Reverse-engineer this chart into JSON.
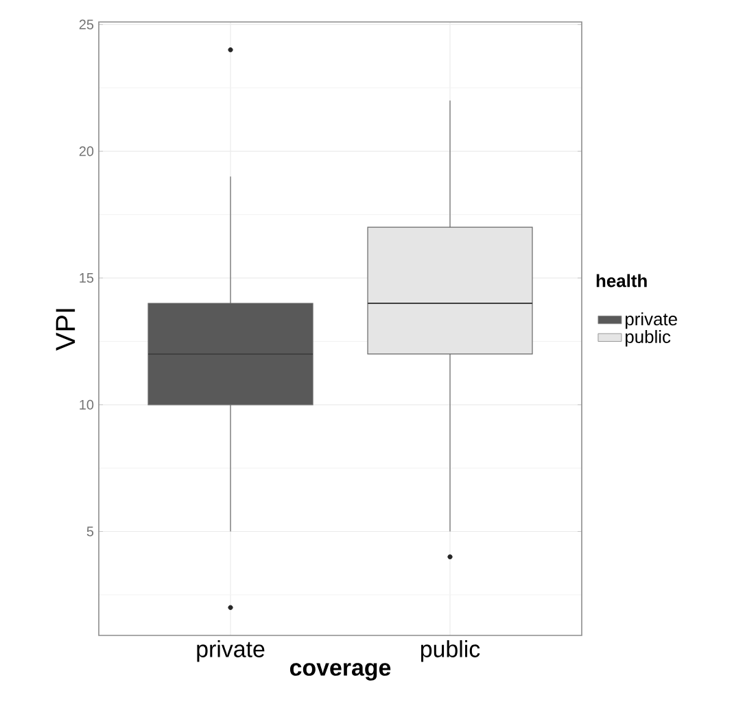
{
  "chart_data": {
    "type": "box",
    "xlabel": "coverage",
    "ylabel": "VPI",
    "legend_title": "health",
    "categories": [
      "private",
      "public"
    ],
    "ylim": [
      0.9,
      25.1
    ],
    "yticks": [
      {
        "value": 2.5,
        "label": null
      },
      5,
      {
        "value": 7.5,
        "label": null
      },
      10,
      {
        "value": 12.5,
        "label": null
      },
      15,
      {
        "value": 17.5,
        "label": null
      },
      20,
      {
        "value": 22.5,
        "label": null
      },
      25
    ],
    "grid": true,
    "legend": "right",
    "series": [
      {
        "name": "private",
        "color": "#595959",
        "boxes": [
          {
            "low": 5,
            "q1": 10,
            "median": 12,
            "q3": 14,
            "high": 19,
            "outliers": [
              24,
              2
            ]
          },
          null
        ]
      },
      {
        "name": "public",
        "color": "#e5e5e5",
        "boxes": [
          null,
          {
            "low": 5,
            "q1": 12,
            "median": 14,
            "q3": 17,
            "high": 22,
            "outliers": [
              4
            ]
          }
        ]
      }
    ]
  }
}
